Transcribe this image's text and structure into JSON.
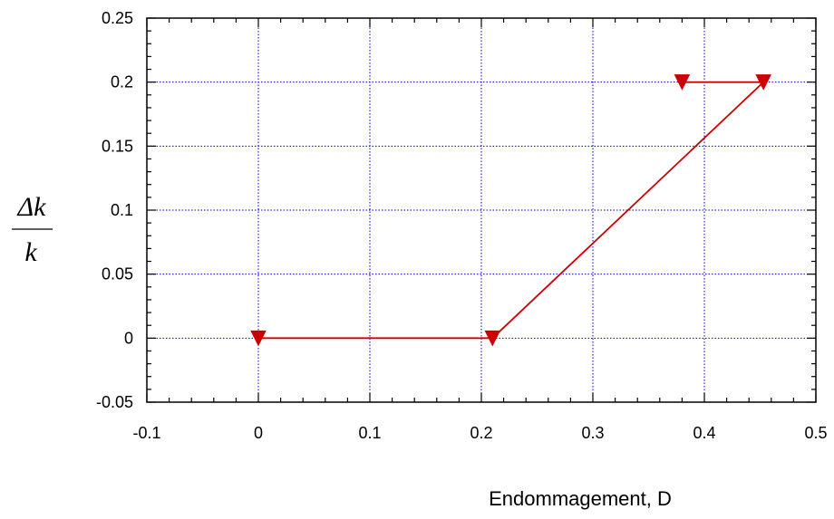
{
  "chart_data": {
    "type": "line",
    "title": "",
    "xlabel": "Endommagement, D",
    "ylabel": {
      "numerator": "Δk",
      "denominator": "k"
    },
    "xlim": [
      -0.1,
      0.5
    ],
    "ylim": [
      -0.05,
      0.25
    ],
    "x_ticks": [
      -0.1,
      0,
      0.1,
      0.2,
      0.3,
      0.4,
      0.5
    ],
    "x_tick_labels": [
      "-0.1",
      "0",
      "0.1",
      "0.2",
      "0.3",
      "0.4",
      "0.5"
    ],
    "y_ticks": [
      -0.05,
      0,
      0.05,
      0.1,
      0.15,
      0.2,
      0.25
    ],
    "y_tick_labels": [
      "-0.05",
      "0",
      "0.05",
      "0.1",
      "0.15",
      "0.2",
      "0.25"
    ],
    "grid": true,
    "grid_color": "#0000cc",
    "series": [
      {
        "color": "#cc0000",
        "marker": "triangle-down",
        "x": [
          0,
          0.21,
          0.453,
          0.38
        ],
        "y": [
          0,
          0,
          0.2,
          0.2
        ]
      }
    ]
  }
}
